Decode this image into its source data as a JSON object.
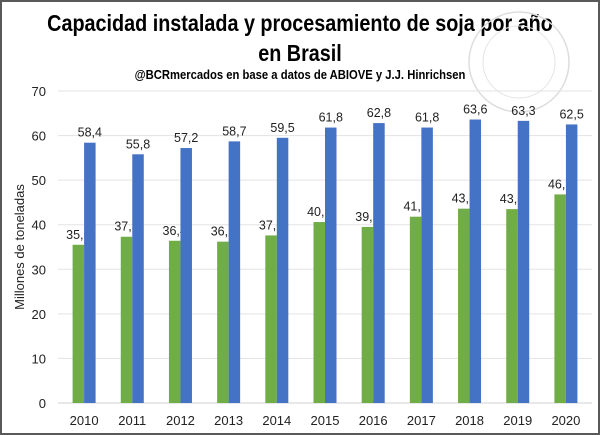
{
  "chart_data": {
    "type": "bar",
    "title": "Capacidad instalada y procesamiento de soja por año en Brasil",
    "subtitle": "@BCRmercados en base a datos de ABIOVE y J.J. Hinrichsen",
    "xlabel": "",
    "ylabel": "Millones de toneladas",
    "ylim": [
      0,
      70
    ],
    "yticks": [
      0,
      10,
      20,
      30,
      40,
      50,
      60,
      70
    ],
    "grid": true,
    "legend": "none",
    "categories": [
      "2010",
      "2011",
      "2012",
      "2013",
      "2014",
      "2015",
      "2016",
      "2017",
      "2018",
      "2019",
      "2020"
    ],
    "series": [
      {
        "color": "#70AD47",
        "values": [
          35.5,
          37.3,
          36.4,
          36.2,
          37.6,
          40.6,
          39.5,
          41.8,
          43.6,
          43.5,
          46.8
        ],
        "labels": [
          "35,5",
          "37,3",
          "36,4",
          "36,2",
          "37,6",
          "40,6",
          "39,5",
          "41,8",
          "43,6",
          "43,5",
          "46,8"
        ]
      },
      {
        "color": "#4472C4",
        "values": [
          58.4,
          55.8,
          57.2,
          58.7,
          59.5,
          61.8,
          62.8,
          61.8,
          63.6,
          63.3,
          62.5
        ],
        "labels": [
          "58,4",
          "55,8",
          "57,2",
          "58,7",
          "59,5",
          "61,8",
          "62,8",
          "61,8",
          "63,6",
          "63,3",
          "62,5"
        ]
      }
    ],
    "watermark": "BOLSA DE COMERCIO DE ROSARIO"
  }
}
